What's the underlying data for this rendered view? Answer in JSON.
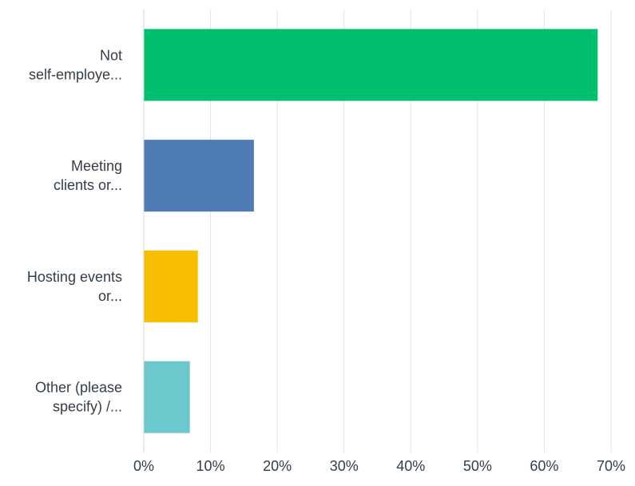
{
  "chart_data": {
    "type": "bar",
    "orientation": "horizontal",
    "categories": [
      [
        "Not",
        "self-employe..."
      ],
      [
        "Meeting",
        "clients or..."
      ],
      [
        "Hosting events",
        "or..."
      ],
      [
        "Other (please",
        "specify) /..."
      ]
    ],
    "values": [
      68,
      16.5,
      8.1,
      6.9
    ],
    "colors": [
      "#00bf6f",
      "#507cb6",
      "#f9be00",
      "#6bc8cd"
    ],
    "xlim": [
      0,
      70
    ],
    "ticks": [
      0,
      10,
      20,
      30,
      40,
      50,
      60,
      70
    ],
    "tick_labels": [
      "0%",
      "10%",
      "20%",
      "30%",
      "40%",
      "50%",
      "60%",
      "70%"
    ],
    "grid": true,
    "title": "",
    "xlabel": "",
    "ylabel": ""
  },
  "colors": {
    "grid": "#e1e4e6",
    "axis": "#d1d5d8",
    "text": "#333e48"
  }
}
